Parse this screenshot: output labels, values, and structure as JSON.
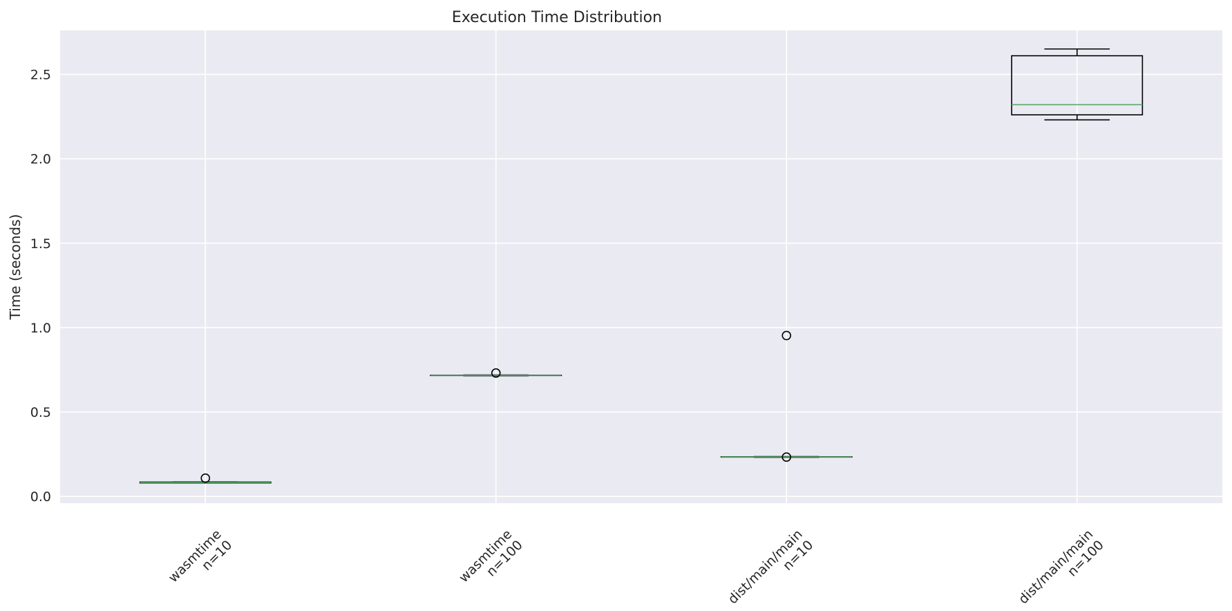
{
  "chart_data": {
    "type": "box",
    "title": "Execution Time Distribution",
    "xlabel": "",
    "ylabel": "Time (seconds)",
    "ylim": [
      -0.04,
      2.76
    ],
    "yticks": [
      0.0,
      0.5,
      1.0,
      1.5,
      2.0,
      2.5
    ],
    "ytick_labels": [
      "0.0",
      "0.5",
      "1.0",
      "1.5",
      "2.0",
      "2.5"
    ],
    "grid": true,
    "categories": [
      {
        "line1": "wasmtime",
        "line2": "n=10"
      },
      {
        "line1": "wasmtime",
        "line2": "n=100"
      },
      {
        "line1": "dist/main/main",
        "line2": "n=10"
      },
      {
        "line1": "dist/main/main",
        "line2": "n=100"
      }
    ],
    "boxes": [
      {
        "whisker_low": 0.08,
        "q1": 0.08,
        "median": 0.082,
        "q3": 0.085,
        "whisker_high": 0.085,
        "outliers": [
          0.108
        ]
      },
      {
        "whisker_low": 0.715,
        "q1": 0.716,
        "median": 0.717,
        "q3": 0.718,
        "whisker_high": 0.719,
        "outliers": [
          0.731
        ]
      },
      {
        "whisker_low": 0.232,
        "q1": 0.233,
        "median": 0.234,
        "q3": 0.235,
        "whisker_high": 0.236,
        "outliers": [
          0.953,
          0.233
        ]
      },
      {
        "whisker_low": 2.23,
        "q1": 2.26,
        "median": 2.32,
        "q3": 2.61,
        "whisker_high": 2.65,
        "outliers": []
      }
    ],
    "colors": {
      "plot_background": "#eaeaf2",
      "grid": "#ffffff",
      "box": "#000000",
      "median": "#55a868"
    }
  }
}
